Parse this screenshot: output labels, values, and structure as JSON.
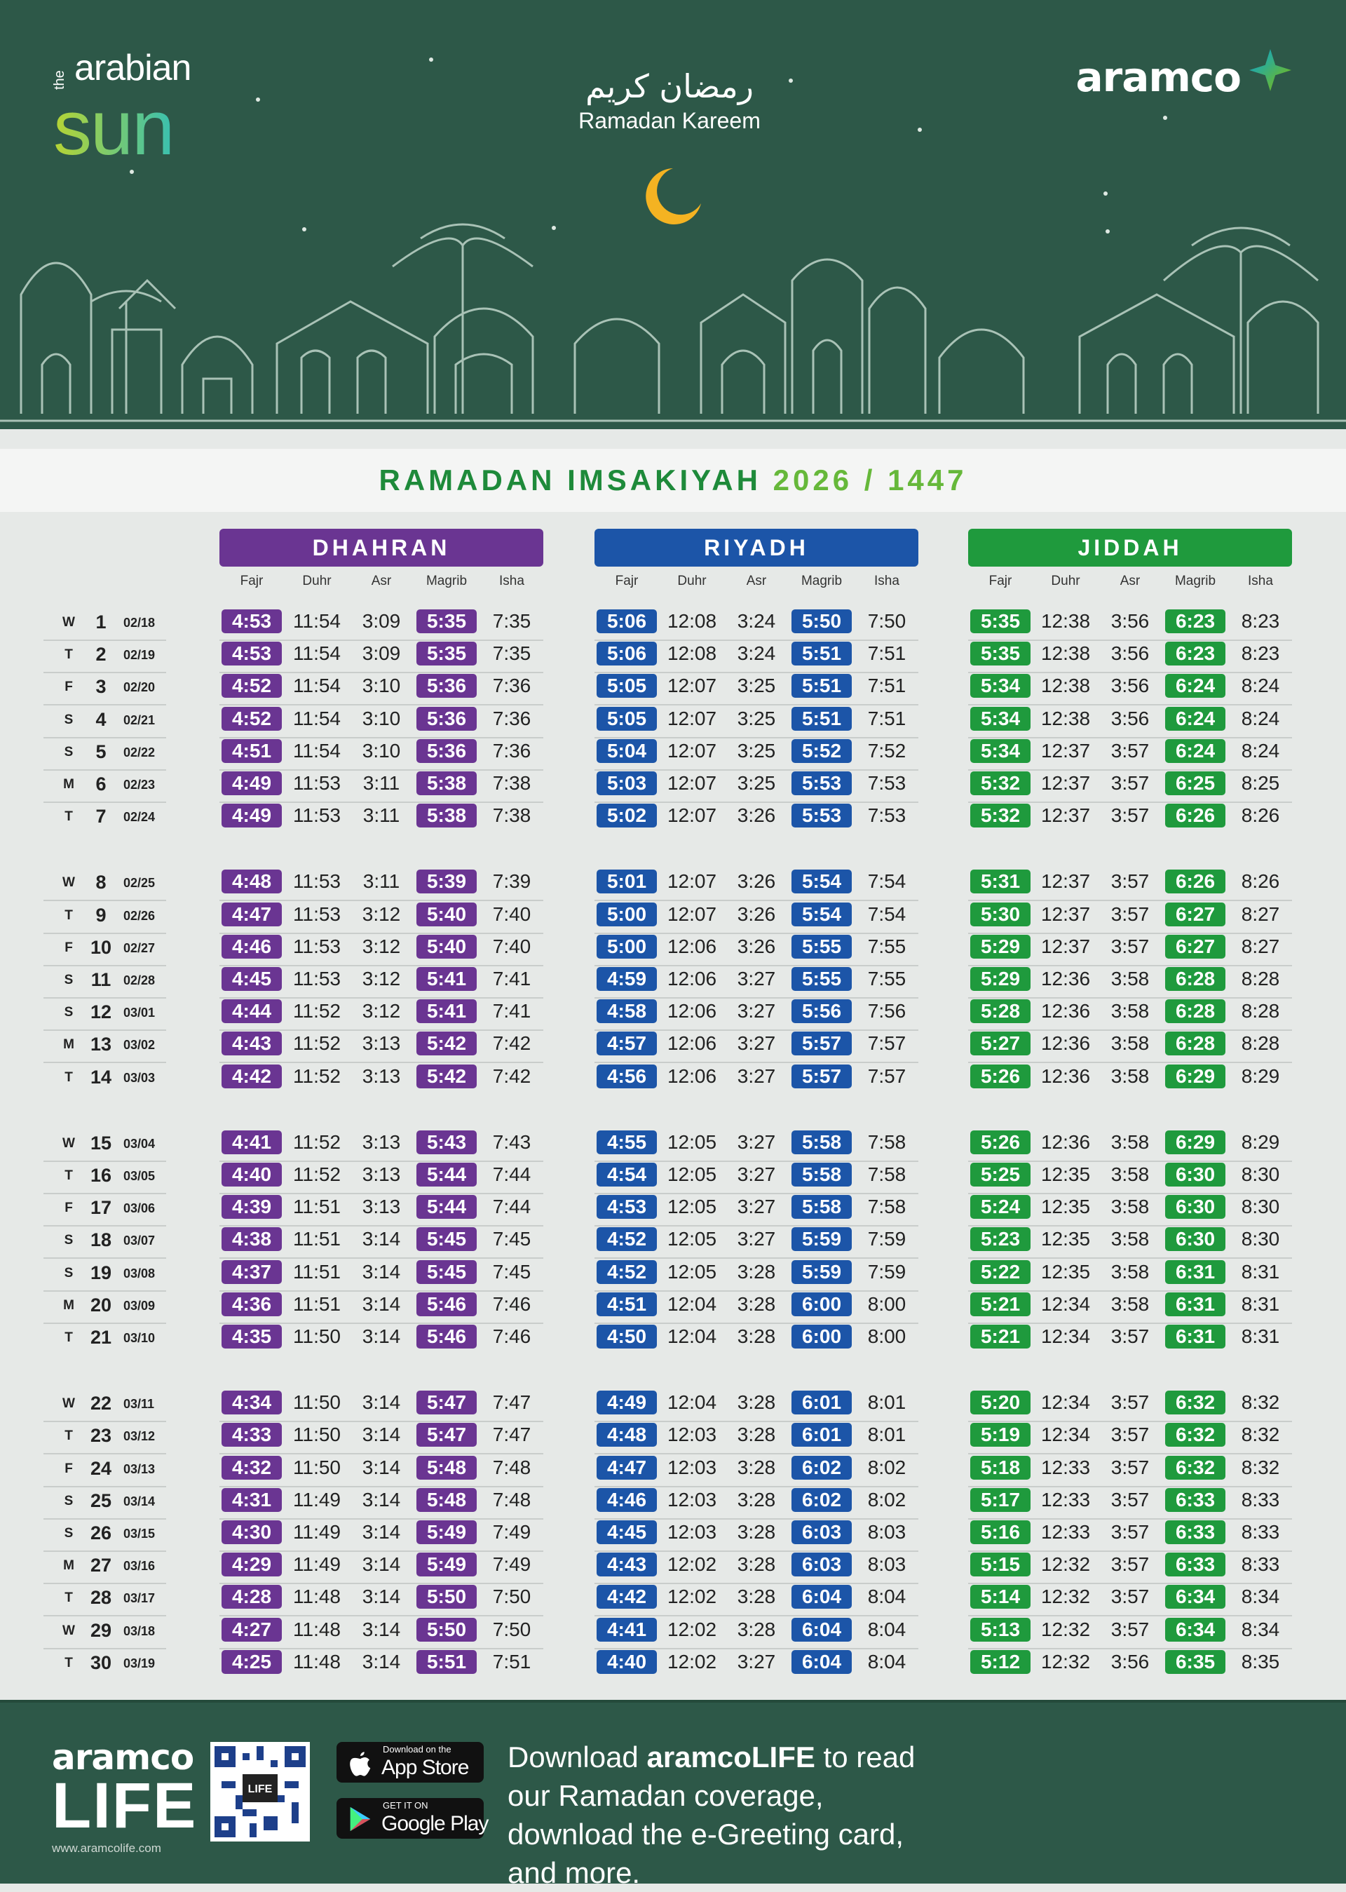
{
  "header": {
    "brand_left_small": "the",
    "brand_left_top": "arabian",
    "brand_left_bottom": "sun",
    "greeting_arabic": "رمضان كريم",
    "greeting": "Ramadan Kareem",
    "brand_right": "aramco"
  },
  "title": {
    "main": "RAMADAN IMSAKIYAH",
    "year": "2026 / 1447"
  },
  "columns": [
    "Fajr",
    "Duhr",
    "Asr",
    "Magrib",
    "Isha"
  ],
  "cities": [
    {
      "name": "DHAHRAN",
      "color": "#6a3592"
    },
    {
      "name": "RIYADH",
      "color": "#1c55a8"
    },
    {
      "name": "JIDDAH",
      "color": "#1f9a3d"
    }
  ],
  "rows": [
    {
      "d": "W",
      "n": "1",
      "date": "02/18",
      "t": [
        [
          "4:53",
          "11:54",
          "3:09",
          "5:35",
          "7:35"
        ],
        [
          "5:06",
          "12:08",
          "3:24",
          "5:50",
          "7:50"
        ],
        [
          "5:35",
          "12:38",
          "3:56",
          "6:23",
          "8:23"
        ]
      ]
    },
    {
      "d": "T",
      "n": "2",
      "date": "02/19",
      "t": [
        [
          "4:53",
          "11:54",
          "3:09",
          "5:35",
          "7:35"
        ],
        [
          "5:06",
          "12:08",
          "3:24",
          "5:51",
          "7:51"
        ],
        [
          "5:35",
          "12:38",
          "3:56",
          "6:23",
          "8:23"
        ]
      ]
    },
    {
      "d": "F",
      "n": "3",
      "date": "02/20",
      "t": [
        [
          "4:52",
          "11:54",
          "3:10",
          "5:36",
          "7:36"
        ],
        [
          "5:05",
          "12:07",
          "3:25",
          "5:51",
          "7:51"
        ],
        [
          "5:34",
          "12:38",
          "3:56",
          "6:24",
          "8:24"
        ]
      ]
    },
    {
      "d": "S",
      "n": "4",
      "date": "02/21",
      "t": [
        [
          "4:52",
          "11:54",
          "3:10",
          "5:36",
          "7:36"
        ],
        [
          "5:05",
          "12:07",
          "3:25",
          "5:51",
          "7:51"
        ],
        [
          "5:34",
          "12:38",
          "3:56",
          "6:24",
          "8:24"
        ]
      ]
    },
    {
      "d": "S",
      "n": "5",
      "date": "02/22",
      "t": [
        [
          "4:51",
          "11:54",
          "3:10",
          "5:36",
          "7:36"
        ],
        [
          "5:04",
          "12:07",
          "3:25",
          "5:52",
          "7:52"
        ],
        [
          "5:34",
          "12:37",
          "3:57",
          "6:24",
          "8:24"
        ]
      ]
    },
    {
      "d": "M",
      "n": "6",
      "date": "02/23",
      "t": [
        [
          "4:49",
          "11:53",
          "3:11",
          "5:38",
          "7:38"
        ],
        [
          "5:03",
          "12:07",
          "3:25",
          "5:53",
          "7:53"
        ],
        [
          "5:32",
          "12:37",
          "3:57",
          "6:25",
          "8:25"
        ]
      ]
    },
    {
      "d": "T",
      "n": "7",
      "date": "02/24",
      "t": [
        [
          "4:49",
          "11:53",
          "3:11",
          "5:38",
          "7:38"
        ],
        [
          "5:02",
          "12:07",
          "3:26",
          "5:53",
          "7:53"
        ],
        [
          "5:32",
          "12:37",
          "3:57",
          "6:26",
          "8:26"
        ]
      ]
    },
    {
      "d": "W",
      "n": "8",
      "date": "02/25",
      "t": [
        [
          "4:48",
          "11:53",
          "3:11",
          "5:39",
          "7:39"
        ],
        [
          "5:01",
          "12:07",
          "3:26",
          "5:54",
          "7:54"
        ],
        [
          "5:31",
          "12:37",
          "3:57",
          "6:26",
          "8:26"
        ]
      ]
    },
    {
      "d": "T",
      "n": "9",
      "date": "02/26",
      "t": [
        [
          "4:47",
          "11:53",
          "3:12",
          "5:40",
          "7:40"
        ],
        [
          "5:00",
          "12:07",
          "3:26",
          "5:54",
          "7:54"
        ],
        [
          "5:30",
          "12:37",
          "3:57",
          "6:27",
          "8:27"
        ]
      ]
    },
    {
      "d": "F",
      "n": "10",
      "date": "02/27",
      "t": [
        [
          "4:46",
          "11:53",
          "3:12",
          "5:40",
          "7:40"
        ],
        [
          "5:00",
          "12:06",
          "3:26",
          "5:55",
          "7:55"
        ],
        [
          "5:29",
          "12:37",
          "3:57",
          "6:27",
          "8:27"
        ]
      ]
    },
    {
      "d": "S",
      "n": "11",
      "date": "02/28",
      "t": [
        [
          "4:45",
          "11:53",
          "3:12",
          "5:41",
          "7:41"
        ],
        [
          "4:59",
          "12:06",
          "3:27",
          "5:55",
          "7:55"
        ],
        [
          "5:29",
          "12:36",
          "3:58",
          "6:28",
          "8:28"
        ]
      ]
    },
    {
      "d": "S",
      "n": "12",
      "date": "03/01",
      "t": [
        [
          "4:44",
          "11:52",
          "3:12",
          "5:41",
          "7:41"
        ],
        [
          "4:58",
          "12:06",
          "3:27",
          "5:56",
          "7:56"
        ],
        [
          "5:28",
          "12:36",
          "3:58",
          "6:28",
          "8:28"
        ]
      ]
    },
    {
      "d": "M",
      "n": "13",
      "date": "03/02",
      "t": [
        [
          "4:43",
          "11:52",
          "3:13",
          "5:42",
          "7:42"
        ],
        [
          "4:57",
          "12:06",
          "3:27",
          "5:57",
          "7:57"
        ],
        [
          "5:27",
          "12:36",
          "3:58",
          "6:28",
          "8:28"
        ]
      ]
    },
    {
      "d": "T",
      "n": "14",
      "date": "03/03",
      "t": [
        [
          "4:42",
          "11:52",
          "3:13",
          "5:42",
          "7:42"
        ],
        [
          "4:56",
          "12:06",
          "3:27",
          "5:57",
          "7:57"
        ],
        [
          "5:26",
          "12:36",
          "3:58",
          "6:29",
          "8:29"
        ]
      ]
    },
    {
      "d": "W",
      "n": "15",
      "date": "03/04",
      "t": [
        [
          "4:41",
          "11:52",
          "3:13",
          "5:43",
          "7:43"
        ],
        [
          "4:55",
          "12:05",
          "3:27",
          "5:58",
          "7:58"
        ],
        [
          "5:26",
          "12:36",
          "3:58",
          "6:29",
          "8:29"
        ]
      ]
    },
    {
      "d": "T",
      "n": "16",
      "date": "03/05",
      "t": [
        [
          "4:40",
          "11:52",
          "3:13",
          "5:44",
          "7:44"
        ],
        [
          "4:54",
          "12:05",
          "3:27",
          "5:58",
          "7:58"
        ],
        [
          "5:25",
          "12:35",
          "3:58",
          "6:30",
          "8:30"
        ]
      ]
    },
    {
      "d": "F",
      "n": "17",
      "date": "03/06",
      "t": [
        [
          "4:39",
          "11:51",
          "3:13",
          "5:44",
          "7:44"
        ],
        [
          "4:53",
          "12:05",
          "3:27",
          "5:58",
          "7:58"
        ],
        [
          "5:24",
          "12:35",
          "3:58",
          "6:30",
          "8:30"
        ]
      ]
    },
    {
      "d": "S",
      "n": "18",
      "date": "03/07",
      "t": [
        [
          "4:38",
          "11:51",
          "3:14",
          "5:45",
          "7:45"
        ],
        [
          "4:52",
          "12:05",
          "3:27",
          "5:59",
          "7:59"
        ],
        [
          "5:23",
          "12:35",
          "3:58",
          "6:30",
          "8:30"
        ]
      ]
    },
    {
      "d": "S",
      "n": "19",
      "date": "03/08",
      "t": [
        [
          "4:37",
          "11:51",
          "3:14",
          "5:45",
          "7:45"
        ],
        [
          "4:52",
          "12:05",
          "3:28",
          "5:59",
          "7:59"
        ],
        [
          "5:22",
          "12:35",
          "3:58",
          "6:31",
          "8:31"
        ]
      ]
    },
    {
      "d": "M",
      "n": "20",
      "date": "03/09",
      "t": [
        [
          "4:36",
          "11:51",
          "3:14",
          "5:46",
          "7:46"
        ],
        [
          "4:51",
          "12:04",
          "3:28",
          "6:00",
          "8:00"
        ],
        [
          "5:21",
          "12:34",
          "3:58",
          "6:31",
          "8:31"
        ]
      ]
    },
    {
      "d": "T",
      "n": "21",
      "date": "03/10",
      "t": [
        [
          "4:35",
          "11:50",
          "3:14",
          "5:46",
          "7:46"
        ],
        [
          "4:50",
          "12:04",
          "3:28",
          "6:00",
          "8:00"
        ],
        [
          "5:21",
          "12:34",
          "3:57",
          "6:31",
          "8:31"
        ]
      ]
    },
    {
      "d": "W",
      "n": "22",
      "date": "03/11",
      "t": [
        [
          "4:34",
          "11:50",
          "3:14",
          "5:47",
          "7:47"
        ],
        [
          "4:49",
          "12:04",
          "3:28",
          "6:01",
          "8:01"
        ],
        [
          "5:20",
          "12:34",
          "3:57",
          "6:32",
          "8:32"
        ]
      ]
    },
    {
      "d": "T",
      "n": "23",
      "date": "03/12",
      "t": [
        [
          "4:33",
          "11:50",
          "3:14",
          "5:47",
          "7:47"
        ],
        [
          "4:48",
          "12:03",
          "3:28",
          "6:01",
          "8:01"
        ],
        [
          "5:19",
          "12:34",
          "3:57",
          "6:32",
          "8:32"
        ]
      ]
    },
    {
      "d": "F",
      "n": "24",
      "date": "03/13",
      "t": [
        [
          "4:32",
          "11:50",
          "3:14",
          "5:48",
          "7:48"
        ],
        [
          "4:47",
          "12:03",
          "3:28",
          "6:02",
          "8:02"
        ],
        [
          "5:18",
          "12:33",
          "3:57",
          "6:32",
          "8:32"
        ]
      ]
    },
    {
      "d": "S",
      "n": "25",
      "date": "03/14",
      "t": [
        [
          "4:31",
          "11:49",
          "3:14",
          "5:48",
          "7:48"
        ],
        [
          "4:46",
          "12:03",
          "3:28",
          "6:02",
          "8:02"
        ],
        [
          "5:17",
          "12:33",
          "3:57",
          "6:33",
          "8:33"
        ]
      ]
    },
    {
      "d": "S",
      "n": "26",
      "date": "03/15",
      "t": [
        [
          "4:30",
          "11:49",
          "3:14",
          "5:49",
          "7:49"
        ],
        [
          "4:45",
          "12:03",
          "3:28",
          "6:03",
          "8:03"
        ],
        [
          "5:16",
          "12:33",
          "3:57",
          "6:33",
          "8:33"
        ]
      ]
    },
    {
      "d": "M",
      "n": "27",
      "date": "03/16",
      "t": [
        [
          "4:29",
          "11:49",
          "3:14",
          "5:49",
          "7:49"
        ],
        [
          "4:43",
          "12:02",
          "3:28",
          "6:03",
          "8:03"
        ],
        [
          "5:15",
          "12:32",
          "3:57",
          "6:33",
          "8:33"
        ]
      ]
    },
    {
      "d": "T",
      "n": "28",
      "date": "03/17",
      "t": [
        [
          "4:28",
          "11:48",
          "3:14",
          "5:50",
          "7:50"
        ],
        [
          "4:42",
          "12:02",
          "3:28",
          "6:04",
          "8:04"
        ],
        [
          "5:14",
          "12:32",
          "3:57",
          "6:34",
          "8:34"
        ]
      ]
    },
    {
      "d": "W",
      "n": "29",
      "date": "03/18",
      "t": [
        [
          "4:27",
          "11:48",
          "3:14",
          "5:50",
          "7:50"
        ],
        [
          "4:41",
          "12:02",
          "3:28",
          "6:04",
          "8:04"
        ],
        [
          "5:13",
          "12:32",
          "3:57",
          "6:34",
          "8:34"
        ]
      ]
    },
    {
      "d": "T",
      "n": "30",
      "date": "03/19",
      "t": [
        [
          "4:25",
          "11:48",
          "3:14",
          "5:51",
          "7:51"
        ],
        [
          "4:40",
          "12:02",
          "3:27",
          "6:04",
          "8:04"
        ],
        [
          "5:12",
          "12:32",
          "3:56",
          "6:35",
          "8:35"
        ]
      ]
    }
  ],
  "footer": {
    "logo_top": "aramco",
    "logo_bottom": "LIFE",
    "url": "www.aramcolife.com",
    "qr_label": "LIFE",
    "appstore_small": "Download on the",
    "appstore": "App Store",
    "play_small": "GET IT ON",
    "play": "Google Play",
    "text_1": "Download ",
    "text_bold": "aramcoLIFE",
    "text_2": " to read our Ramadan coverage, download the e-Greeting card, and more.",
    "icons": [
      "apple-icon",
      "google-play-icon",
      "qr-code"
    ]
  }
}
